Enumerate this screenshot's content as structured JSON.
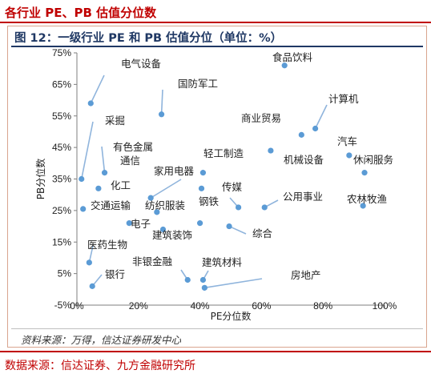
{
  "header": {
    "title": "各行业 PE、PB 估值分位数",
    "source": "数据来源：信达证券、九方金融研究所"
  },
  "colors": {
    "brand_red": "#c00000",
    "chart_navy": "#1f3864",
    "marker_blue": "#5b9bd5"
  },
  "chart_data": {
    "type": "scatter",
    "title": "图 12：一级行业 PE 和 PB 估值分位（单位：%）",
    "xlabel": "PE分位数",
    "ylabel": "PB分位数",
    "xlim": [
      0,
      100
    ],
    "ylim": [
      -5,
      75
    ],
    "x_ticks": [
      0,
      20,
      40,
      60,
      80,
      100
    ],
    "x_tick_labels": [
      "0%",
      "20%",
      "40%",
      "60%",
      "80%",
      "100%"
    ],
    "y_ticks": [
      -5,
      5,
      15,
      25,
      35,
      45,
      55,
      65,
      75
    ],
    "y_tick_labels": [
      "-5%",
      "5%",
      "15%",
      "25%",
      "35%",
      "45%",
      "55%",
      "65%",
      "75%"
    ],
    "grid": false,
    "source_note": "资料来源：万得，信达证券研发中心",
    "points": [
      {
        "name": "食品饮料",
        "x": 67.5,
        "y": 71
      },
      {
        "name": "电气设备",
        "x": 4.5,
        "y": 59
      },
      {
        "name": "国防军工",
        "x": 27.5,
        "y": 55.5
      },
      {
        "name": "计算机",
        "x": 77.5,
        "y": 51
      },
      {
        "name": "商业贸易",
        "x": 73,
        "y": 49
      },
      {
        "name": "采掘",
        "x": 1.5,
        "y": 35
      },
      {
        "name": "汽车",
        "x": 88.5,
        "y": 42.5
      },
      {
        "name": "机械设备",
        "x": 63,
        "y": 44
      },
      {
        "name": "休闲服务",
        "x": 93.5,
        "y": 37
      },
      {
        "name": "有色金属",
        "x": 9,
        "y": 37
      },
      {
        "name": "轻工制造",
        "x": 41,
        "y": 37
      },
      {
        "name": "通信",
        "x": 7,
        "y": 32
      },
      {
        "name": "家用电器",
        "x": 24,
        "y": 29
      },
      {
        "name": "化工",
        "x": 40.5,
        "y": 32
      },
      {
        "name": "传媒",
        "x": 52.5,
        "y": 26
      },
      {
        "name": "公用事业",
        "x": 61,
        "y": 26
      },
      {
        "name": "农林牧渔",
        "x": 93,
        "y": 26.5
      },
      {
        "name": "交通运输",
        "x": 2,
        "y": 25.5
      },
      {
        "name": "纺织服装",
        "x": 26,
        "y": 24.5
      },
      {
        "name": "钢铁",
        "x": 40,
        "y": 21
      },
      {
        "name": "电子",
        "x": 17,
        "y": 21
      },
      {
        "name": "建筑装饰",
        "x": 28,
        "y": 19
      },
      {
        "name": "综合",
        "x": 49.5,
        "y": 20
      },
      {
        "name": "医药生物",
        "x": 4,
        "y": 8.5
      },
      {
        "name": "非银金融",
        "x": 36,
        "y": 3
      },
      {
        "name": "建筑材料",
        "x": 41,
        "y": 3
      },
      {
        "name": "银行",
        "x": 5,
        "y": 1
      },
      {
        "name": "房地产",
        "x": 41.5,
        "y": 0.5
      }
    ]
  }
}
